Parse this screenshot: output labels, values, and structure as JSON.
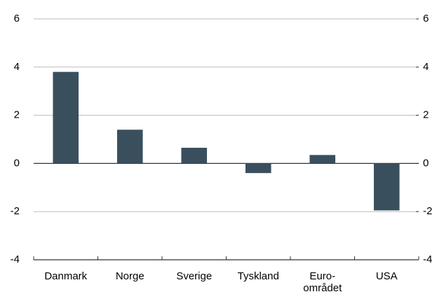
{
  "chart_data": {
    "type": "bar",
    "categories": [
      "Danmark",
      "Norge",
      "Sverige",
      "Tyskland",
      "Euro-\nområdet",
      "USA"
    ],
    "values": [
      3.8,
      1.4,
      0.65,
      -0.4,
      0.35,
      -1.95
    ],
    "color": "#3a4f5e",
    "ylim": [
      -4,
      6
    ],
    "yticks": [
      -4,
      -2,
      0,
      2,
      4,
      6
    ],
    "y2lim": [
      -4,
      6
    ],
    "y2ticks": [
      -4,
      -2,
      0,
      2,
      4,
      6
    ],
    "grid": true
  }
}
